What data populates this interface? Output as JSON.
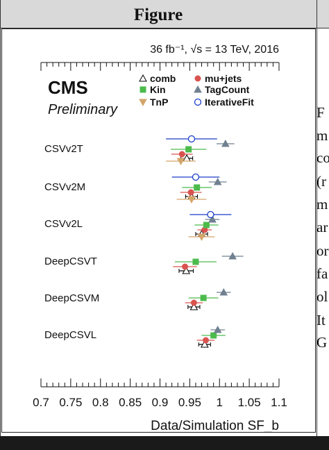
{
  "header": {
    "title": "Figure"
  },
  "side_text": [
    "F",
    "m",
    "co",
    "(r",
    "m",
    "ar",
    "or",
    "fa",
    "ol",
    "It",
    "G"
  ],
  "chart_data": {
    "type": "scatter",
    "annotation": "36 fb⁻¹, √s = 13 TeV, 2016",
    "experiment": "CMS",
    "status": "Preliminary",
    "xlabel": "Data/Simulation SF_b",
    "xlim": [
      0.7,
      1.1
    ],
    "x_ticks": [
      "0.7",
      "0.75",
      "0.8",
      "0.85",
      "0.9",
      "0.95",
      "1",
      "1.05",
      "1.1"
    ],
    "categories": [
      "CSVv2T",
      "CSVv2M",
      "CSVv2L",
      "DeepCSVT",
      "DeepCSVM",
      "DeepCSVL"
    ],
    "legend_placement": "top-right",
    "series": [
      {
        "name": "comb",
        "marker": "open-triangle",
        "color": "#000000",
        "values": [
          0.945,
          0.953,
          0.97,
          0.944,
          0.957,
          0.975
        ],
        "err": [
          0.01,
          0.01,
          0.01,
          0.012,
          0.01,
          0.01
        ]
      },
      {
        "name": "mu+jets",
        "marker": "filled-circle",
        "color": "#d9534f",
        "values": [
          0.937,
          0.952,
          0.975,
          0.942,
          0.957,
          0.977
        ],
        "err": [
          0.018,
          0.018,
          0.012,
          0.02,
          0.015,
          0.015
        ]
      },
      {
        "name": "Kin",
        "marker": "filled-square",
        "color": "#4cbb4c",
        "values": [
          0.948,
          0.962,
          0.978,
          0.96,
          0.973,
          0.99
        ],
        "err": [
          0.03,
          0.025,
          0.02,
          0.035,
          0.025,
          0.02
        ]
      },
      {
        "name": "TagCount",
        "marker": "filled-triangle",
        "color": "#708090",
        "values": [
          1.01,
          0.997,
          0.988,
          1.022,
          1.007,
          0.997
        ],
        "err": [
          0.015,
          0.015,
          0.012,
          0.018,
          0.012,
          0.012
        ]
      },
      {
        "name": "TnP",
        "marker": "filled-down-triangle",
        "color": "#d4a56a",
        "values": [
          0.935,
          0.953,
          0.97
        ],
        "err": [
          0.025,
          0.025,
          0.022
        ]
      },
      {
        "name": "IterativeFit",
        "marker": "open-circle",
        "color": "#1a3cc8",
        "values": [
          0.953,
          0.96,
          0.985
        ],
        "err": [
          0.043,
          0.04,
          0.035
        ]
      }
    ],
    "colors": {
      "frame": "#222222",
      "header_bg": "#d9d9d9"
    }
  }
}
